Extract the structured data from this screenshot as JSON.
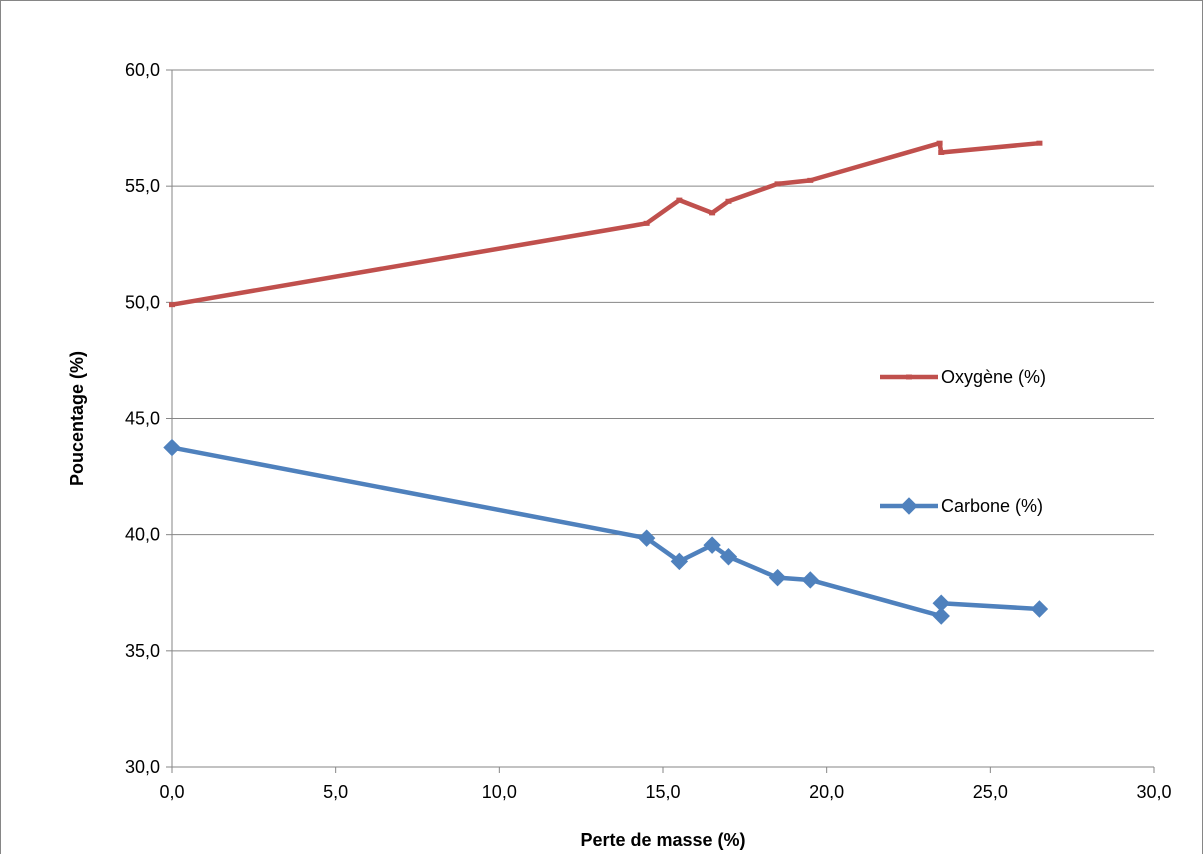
{
  "chart_data": {
    "type": "line",
    "title": "",
    "xlabel": "Perte de masse (%)",
    "ylabel": "Poucentage (%)",
    "xlim": [
      0,
      30
    ],
    "ylim": [
      30,
      60
    ],
    "x_ticks": [
      "0,0",
      "5,0",
      "10,0",
      "15,0",
      "20,0",
      "25,0",
      "30,0"
    ],
    "y_ticks": [
      "30,0",
      "35,0",
      "40,0",
      "45,0",
      "50,0",
      "55,0",
      "60,0"
    ],
    "grid": "horizontal",
    "legend_position": "right",
    "series": [
      {
        "name": "Oxygène (%)",
        "color": "#c0504d",
        "marker": "dash",
        "points": [
          [
            0.0,
            49.9
          ],
          [
            14.5,
            53.4
          ],
          [
            15.5,
            54.4
          ],
          [
            16.5,
            53.85
          ],
          [
            17.0,
            54.35
          ],
          [
            18.5,
            55.1
          ],
          [
            19.5,
            55.25
          ],
          [
            23.45,
            56.85
          ],
          [
            23.5,
            56.45
          ],
          [
            26.5,
            56.85
          ]
        ]
      },
      {
        "name": "Carbone (%)",
        "color": "#4f81bd",
        "marker": "diamond",
        "points": [
          [
            0.0,
            43.75
          ],
          [
            14.5,
            39.85
          ],
          [
            15.5,
            38.85
          ],
          [
            16.5,
            39.55
          ],
          [
            17.0,
            39.05
          ],
          [
            18.5,
            38.15
          ],
          [
            19.5,
            38.05
          ],
          [
            23.5,
            36.5
          ],
          [
            23.5,
            37.05
          ],
          [
            26.5,
            36.8
          ]
        ]
      }
    ]
  }
}
